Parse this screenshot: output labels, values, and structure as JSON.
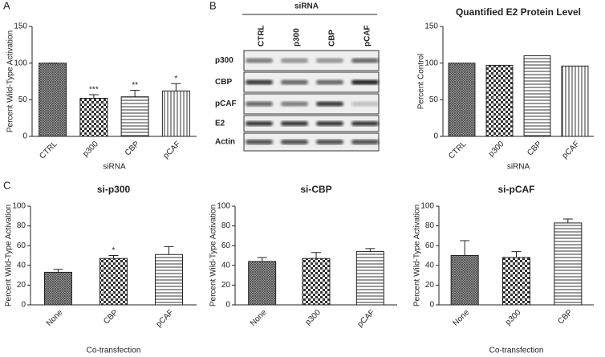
{
  "panel_labels": [
    "A",
    "B",
    "C"
  ],
  "blot": {
    "title": "siRNA",
    "lanes": [
      "CTRL",
      "p300",
      "CBP",
      "pCAF"
    ],
    "rows": [
      "p300",
      "CBP",
      "pCAF",
      "E2",
      "Actin"
    ]
  },
  "chart_data": [
    {
      "type": "bar",
      "ylabel": "Percent Wild-Type Activation",
      "xlabel": "siRNA",
      "categories": [
        "CTRL",
        "p300",
        "CBP",
        "pCAF"
      ],
      "values": [
        100,
        52,
        54,
        62
      ],
      "errors": [
        0,
        5,
        9,
        10
      ],
      "annotations": [
        null,
        "***",
        "**",
        "*"
      ],
      "patterns": [
        "crosshatch",
        "checker",
        "hlines",
        "vlines"
      ],
      "ylim": [
        0,
        150
      ],
      "yticks": [
        0,
        50,
        100,
        150
      ]
    },
    {
      "type": "bar",
      "title": "Quantified E2 Protein Level",
      "ylabel": "Percent Control",
      "xlabel": "siRNA",
      "categories": [
        "CTRL",
        "p300",
        "CBP",
        "pCAF"
      ],
      "values": [
        100,
        97,
        110,
        96
      ],
      "patterns": [
        "crosshatch",
        "checker",
        "hlines",
        "vlines"
      ],
      "ylim": [
        0,
        150
      ],
      "yticks": [
        0,
        50,
        100,
        150
      ]
    },
    {
      "type": "bar",
      "title": "si-p300",
      "ylabel": "Percent Wild-Type Activation",
      "xlabel": "Co-transfection",
      "categories": [
        "None",
        "CBP",
        "pCAF"
      ],
      "values": [
        33,
        47,
        51
      ],
      "errors": [
        3,
        3,
        8
      ],
      "annotations": [
        null,
        "*",
        null
      ],
      "patterns": [
        "crosshatch",
        "checker",
        "hlines"
      ],
      "ylim": [
        0,
        100
      ],
      "yticks": [
        0,
        20,
        40,
        60,
        80,
        100
      ]
    },
    {
      "type": "bar",
      "title": "si-CBP",
      "ylabel": "Percent Wild-Type Activation",
      "categories": [
        "None",
        "p300",
        "pCAF"
      ],
      "values": [
        44,
        47,
        54
      ],
      "errors": [
        4,
        6,
        3
      ],
      "patterns": [
        "crosshatch",
        "checker",
        "hlines"
      ],
      "ylim": [
        0,
        100
      ],
      "yticks": [
        0,
        20,
        40,
        60,
        80,
        100
      ]
    },
    {
      "type": "bar",
      "title": "si-pCAF",
      "ylabel": "Percent Wild-Type Activation",
      "xlabel": "Co-transfection",
      "categories": [
        "None",
        "p300",
        "CBP"
      ],
      "values": [
        50,
        48,
        83
      ],
      "errors": [
        15,
        6,
        4
      ],
      "patterns": [
        "crosshatch",
        "checker",
        "hlines"
      ],
      "ylim": [
        0,
        100
      ],
      "yticks": [
        0,
        20,
        40,
        60,
        80,
        100
      ]
    }
  ]
}
